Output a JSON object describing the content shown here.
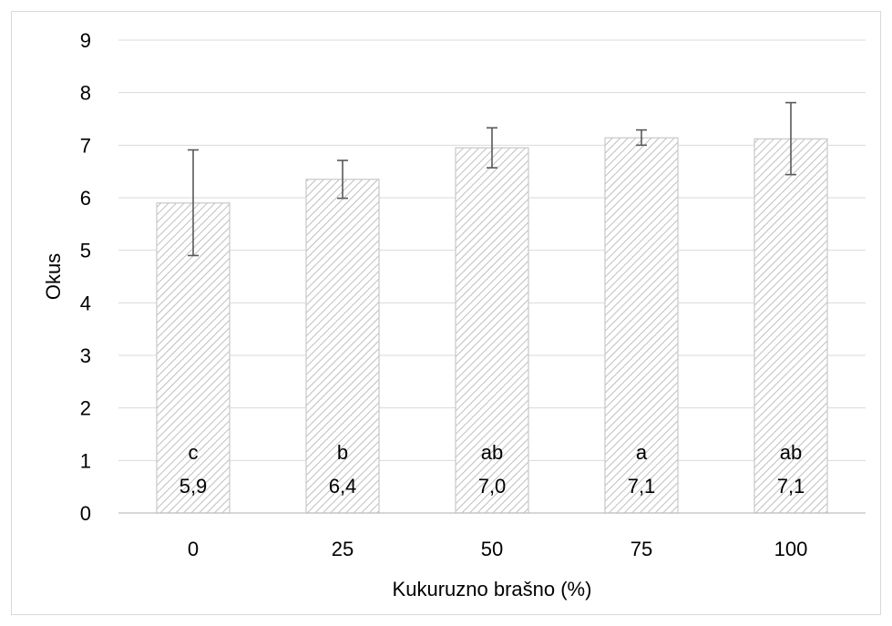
{
  "chart_data": {
    "type": "bar",
    "categories": [
      "0",
      "25",
      "50",
      "75",
      "100"
    ],
    "values": [
      5.9,
      6.35,
      6.95,
      7.14,
      7.12
    ],
    "value_labels": [
      "5,9",
      "6,4",
      "7,0",
      "7,1",
      "7,1"
    ],
    "group_letters": [
      "c",
      "b",
      "ab",
      "a",
      "ab"
    ],
    "error_bars": {
      "lower": [
        4.9,
        5.99,
        6.57,
        7.0,
        6.44
      ],
      "upper": [
        6.91,
        6.71,
        7.33,
        7.29,
        7.81
      ]
    },
    "xlabel": "Kukuruzno brašno (%)",
    "ylabel": "Okus",
    "ylim": [
      0,
      9
    ],
    "yticks": [
      "0",
      "1",
      "2",
      "3",
      "4",
      "5",
      "6",
      "7",
      "8",
      "9"
    ],
    "grid": true,
    "legend": "none",
    "colors": {
      "bar_hatch": "#bfbfbf",
      "bar_border": "#c8c8c8",
      "gridline": "#d9d9d9",
      "error_bar": "#595959"
    }
  }
}
